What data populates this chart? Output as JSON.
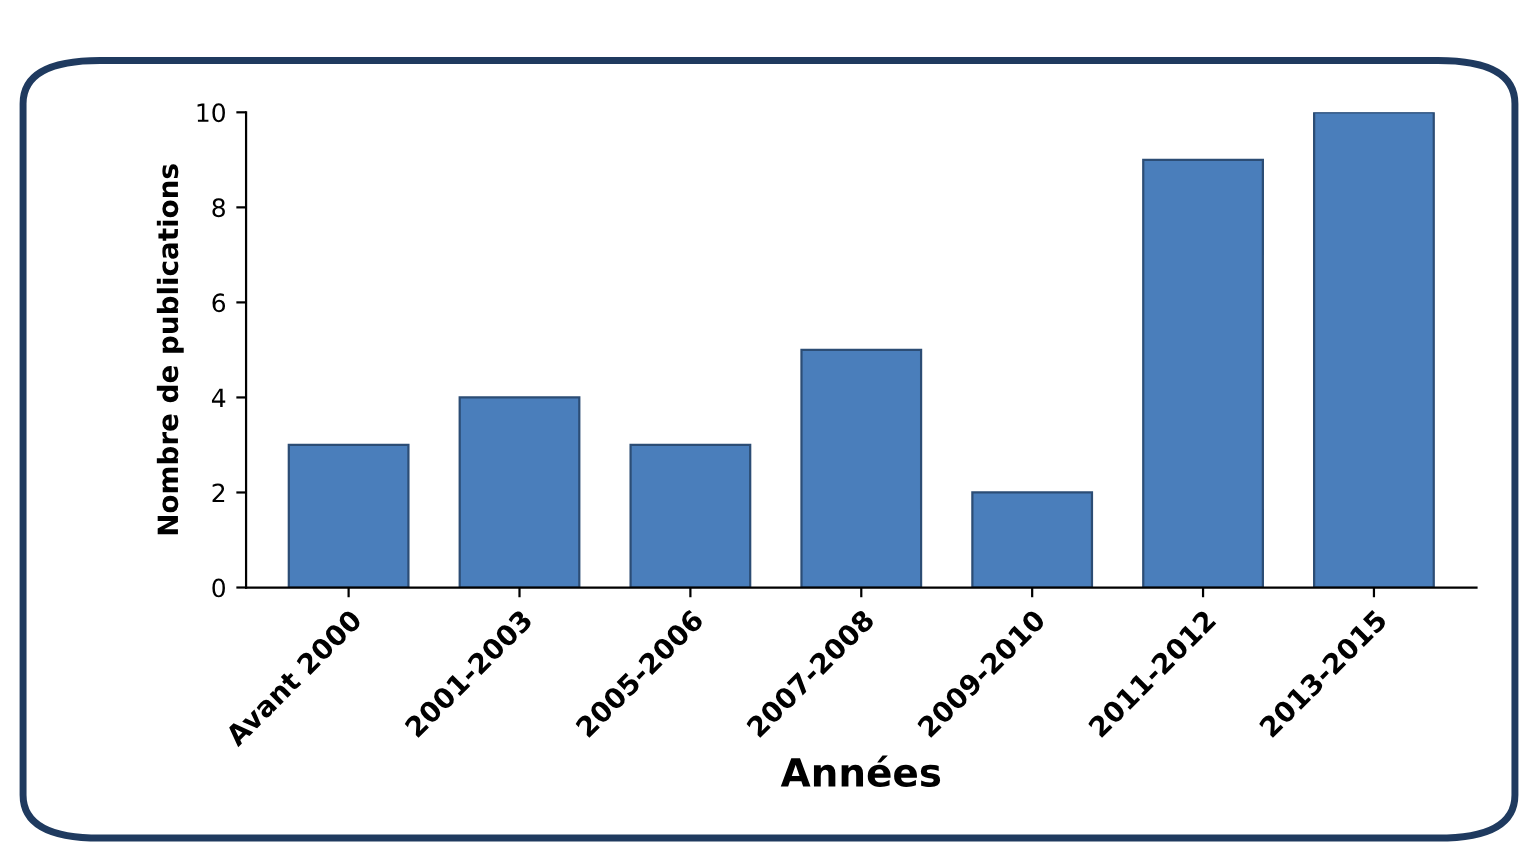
{
  "chart_data": {
    "type": "bar",
    "xlabel": "Années",
    "ylabel": "Nombre de publications",
    "categories": [
      "Avant 2000",
      "2001-2003",
      "2005-2006",
      "2007-2008",
      "2009-2010",
      "2011-2012",
      "2013-2015"
    ],
    "values": [
      3,
      4,
      3,
      5,
      2,
      9,
      10
    ],
    "color": "#4a7ebb",
    "ylim": [
      0,
      10
    ],
    "yticks": [
      0,
      2,
      4,
      6,
      8,
      10
    ],
    "grid": false,
    "legend": false
  }
}
